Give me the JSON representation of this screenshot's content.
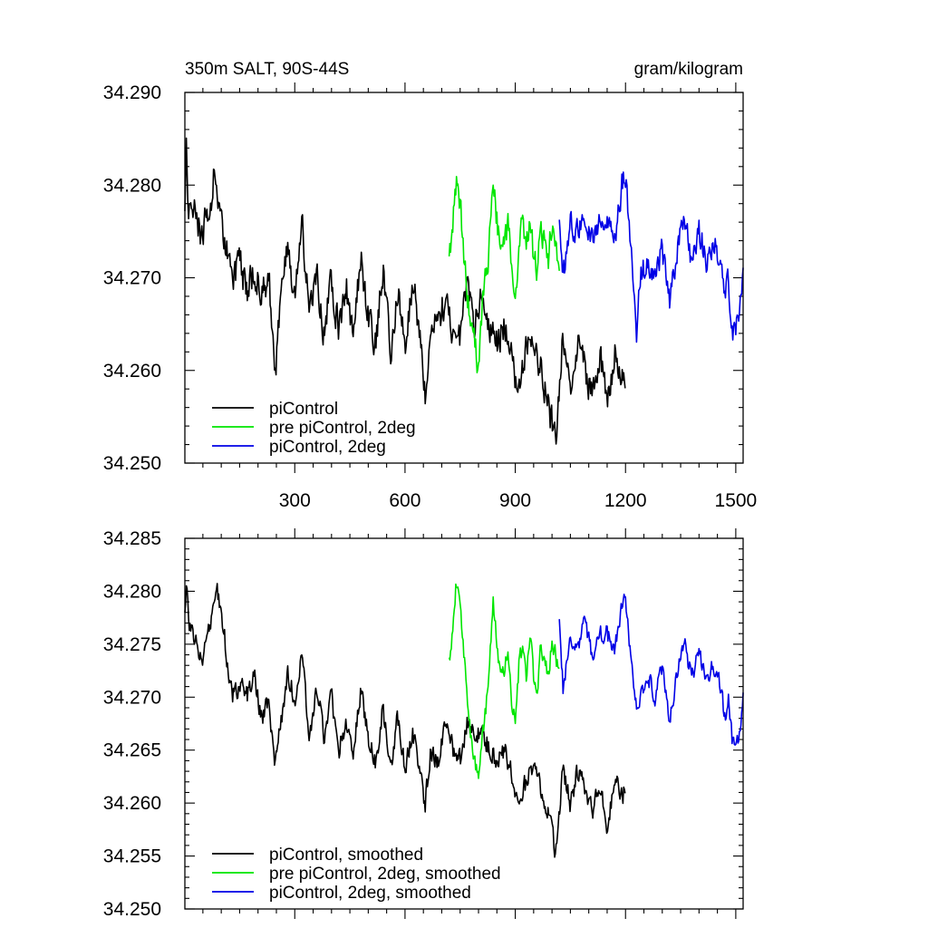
{
  "chart_data": [
    {
      "type": "line",
      "title_left": "350m SALT, 90S-44S",
      "title_right": "gram/kilogram",
      "xlabel": "",
      "ylabel": "",
      "xlim": [
        1,
        1520
      ],
      "ylim": [
        34.25,
        34.29
      ],
      "xticks": [
        300,
        600,
        900,
        1200,
        1500
      ],
      "xtick_labels": [
        "300",
        "600",
        "900",
        "1200",
        "1500"
      ],
      "yticks": [
        34.25,
        34.26,
        34.27,
        34.28,
        34.29
      ],
      "ytick_labels": [
        "34.250",
        "34.260",
        "34.270",
        "34.280",
        "34.290"
      ],
      "grid": false,
      "legend_position": "bottom-left",
      "series": [
        {
          "name": "piControl",
          "color": "#000000",
          "anchors": {
            "x": [
              1,
              5,
              10,
              20,
              35,
              50,
              60,
              70,
              80,
              90,
              100,
              115,
              130,
              150,
              170,
              190,
              210,
              230,
              245,
              260,
              280,
              300,
              320,
              340,
              360,
              380,
              400,
              420,
              440,
              460,
              480,
              500,
              520,
              540,
              560,
              580,
              600,
              620,
              640,
              655,
              670,
              690,
              710,
              730,
              750,
              770,
              790,
              810,
              830,
              850,
              870,
              890,
              910,
              930,
              950,
              970,
              990,
              1010,
              1030,
              1050,
              1070,
              1090,
              1110,
              1130,
              1150,
              1170,
              1190,
              1200
            ],
            "y": [
              34.276,
              34.285,
              34.277,
              34.279,
              34.276,
              34.274,
              34.278,
              34.276,
              34.281,
              34.277,
              34.276,
              34.273,
              34.27,
              34.272,
              34.268,
              34.271,
              34.268,
              34.27,
              34.259,
              34.266,
              34.274,
              34.268,
              34.276,
              34.266,
              34.27,
              34.264,
              34.27,
              34.264,
              34.269,
              34.264,
              34.272,
              34.266,
              34.263,
              34.271,
              34.262,
              34.269,
              34.262,
              34.27,
              34.264,
              34.257,
              34.266,
              34.265,
              34.268,
              34.264,
              34.263,
              34.27,
              34.265,
              34.268,
              34.265,
              34.263,
              34.265,
              34.262,
              34.257,
              34.263,
              34.264,
              34.26,
              34.256,
              34.253,
              34.264,
              34.258,
              34.263,
              34.26,
              34.257,
              34.262,
              34.256,
              34.262,
              34.26,
              34.258
            ]
          },
          "noise": 0.0024
        },
        {
          "name": "pre piControl, 2deg",
          "color": "#00e600",
          "anchors": {
            "x": [
              720,
              730,
              740,
              750,
              760,
              770,
              780,
              790,
              800,
              810,
              820,
              830,
              840,
              850,
              860,
              870,
              880,
              890,
              900,
              910,
              920,
              930,
              940,
              950,
              960,
              970,
              980,
              990,
              1000,
              1010,
              1020
            ],
            "y": [
              34.271,
              34.276,
              34.281,
              34.278,
              34.272,
              34.268,
              34.265,
              34.263,
              34.26,
              34.267,
              34.27,
              34.274,
              34.28,
              34.276,
              34.272,
              34.273,
              34.276,
              34.271,
              34.268,
              34.274,
              34.276,
              34.273,
              34.277,
              34.272,
              34.271,
              34.276,
              34.273,
              34.272,
              34.276,
              34.274,
              34.272
            ]
          },
          "noise": 0.0022
        },
        {
          "name": "piControl, 2deg",
          "color": "#0000e6",
          "anchors": {
            "x": [
              1020,
              1030,
              1050,
              1070,
              1090,
              1110,
              1130,
              1150,
              1170,
              1190,
              1200,
              1210,
              1220,
              1230,
              1240,
              1260,
              1280,
              1300,
              1320,
              1340,
              1360,
              1380,
              1400,
              1420,
              1440,
              1460,
              1470,
              1480,
              1490,
              1500,
              1510,
              1520
            ],
            "y": [
              34.277,
              34.27,
              34.276,
              34.275,
              34.277,
              34.274,
              34.276,
              34.276,
              34.274,
              34.28,
              34.281,
              34.275,
              34.271,
              34.264,
              34.27,
              34.272,
              34.27,
              34.273,
              34.267,
              34.273,
              34.276,
              34.272,
              34.275,
              34.272,
              34.274,
              34.272,
              34.268,
              34.27,
              34.264,
              34.265,
              34.267,
              34.27
            ]
          },
          "noise": 0.002
        }
      ]
    },
    {
      "type": "line",
      "title_left": "",
      "title_right": "",
      "xlabel": "",
      "ylabel": "",
      "xlim": [
        1,
        1520
      ],
      "ylim": [
        34.25,
        34.285
      ],
      "xticks": [
        300,
        600,
        900,
        1200,
        1500
      ],
      "xtick_labels": [],
      "yticks": [
        34.25,
        34.255,
        34.26,
        34.265,
        34.27,
        34.275,
        34.28,
        34.285
      ],
      "ytick_labels": [
        "34.250",
        "34.255",
        "34.260",
        "34.265",
        "34.270",
        "34.275",
        "34.280",
        "34.285"
      ],
      "grid": false,
      "legend_position": "bottom-left",
      "series": [
        {
          "name": "piControl, smoothed",
          "color": "#000000",
          "anchors": {
            "x": [
              1,
              5,
              12,
              20,
              35,
              50,
              65,
              80,
              90,
              100,
              115,
              130,
              150,
              170,
              190,
              210,
              230,
              245,
              260,
              280,
              300,
              320,
              340,
              360,
              380,
              400,
              420,
              440,
              460,
              480,
              500,
              520,
              540,
              560,
              580,
              600,
              620,
              640,
              655,
              670,
              690,
              710,
              730,
              750,
              770,
              790,
              810,
              830,
              850,
              870,
              890,
              910,
              930,
              950,
              970,
              990,
              1010,
              1030,
              1050,
              1070,
              1090,
              1110,
              1130,
              1150,
              1170,
              1190,
              1200
            ],
            "y": [
              34.278,
              34.281,
              34.277,
              34.276,
              34.275,
              34.274,
              34.276,
              34.278,
              34.28,
              34.278,
              34.274,
              34.27,
              34.271,
              34.27,
              34.272,
              34.268,
              34.27,
              34.263,
              34.267,
              34.272,
              34.27,
              34.274,
              34.266,
              34.271,
              34.266,
              34.27,
              34.265,
              34.268,
              34.265,
              34.271,
              34.266,
              34.264,
              34.269,
              34.263,
              34.268,
              34.263,
              34.267,
              34.263,
              34.26,
              34.265,
              34.264,
              34.268,
              34.265,
              34.264,
              34.268,
              34.266,
              34.267,
              34.265,
              34.264,
              34.265,
              34.263,
              34.26,
              34.262,
              34.264,
              34.261,
              34.259,
              34.255,
              34.263,
              34.26,
              34.263,
              34.261,
              34.259,
              34.262,
              34.258,
              34.262,
              34.261,
              34.261
            ]
          },
          "noise": 0.0014
        },
        {
          "name": "pre piControl, 2deg, smoothed",
          "color": "#00e600",
          "anchors": {
            "x": [
              720,
              730,
              740,
              750,
              760,
              770,
              780,
              790,
              800,
              810,
              820,
              830,
              840,
              850,
              860,
              870,
              880,
              890,
              900,
              910,
              920,
              930,
              940,
              950,
              960,
              970,
              980,
              990,
              1000,
              1010,
              1020
            ],
            "y": [
              34.273,
              34.277,
              34.281,
              34.279,
              34.274,
              34.27,
              34.266,
              34.264,
              34.262,
              34.266,
              34.269,
              34.273,
              34.279,
              34.275,
              34.272,
              34.272,
              34.275,
              34.27,
              34.268,
              34.273,
              34.275,
              34.272,
              34.276,
              34.272,
              34.271,
              34.275,
              34.273,
              34.272,
              34.275,
              34.274,
              34.272
            ]
          },
          "noise": 0.0012
        },
        {
          "name": "piControl, 2deg, smoothed",
          "color": "#0000e6",
          "anchors": {
            "x": [
              1020,
              1030,
              1050,
              1070,
              1090,
              1110,
              1130,
              1150,
              1170,
              1190,
              1200,
              1210,
              1220,
              1230,
              1240,
              1260,
              1280,
              1300,
              1320,
              1340,
              1360,
              1380,
              1400,
              1420,
              1440,
              1460,
              1470,
              1480,
              1490,
              1500,
              1510,
              1520
            ],
            "y": [
              34.277,
              34.271,
              34.275,
              34.275,
              34.277,
              34.274,
              34.276,
              34.276,
              34.274,
              34.279,
              34.28,
              34.275,
              34.272,
              34.269,
              34.27,
              34.272,
              34.27,
              34.273,
              34.268,
              34.272,
              34.275,
              34.272,
              34.274,
              34.272,
              34.273,
              34.271,
              34.268,
              34.27,
              34.266,
              34.265,
              34.267,
              34.27
            ]
          },
          "noise": 0.0012
        }
      ]
    }
  ]
}
